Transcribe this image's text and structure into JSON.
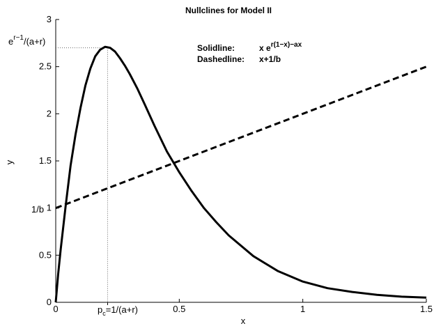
{
  "chart_data": {
    "type": "line",
    "title": "Nullclines for Model II",
    "xlabel": "x",
    "ylabel": "y",
    "xlim": [
      0,
      1.5
    ],
    "ylim": [
      0,
      3
    ],
    "x_ticks": [
      0,
      0.5,
      1,
      1.5
    ],
    "x_tick_labels": [
      "0",
      "0.5",
      "1",
      "1.5"
    ],
    "y_ticks": [
      0,
      0.5,
      1,
      1.5,
      2,
      2.5,
      3
    ],
    "y_tick_labels": [
      "0",
      "0.5",
      "1",
      "1.5",
      "2",
      "2.5",
      "3"
    ],
    "grid": false,
    "series": [
      {
        "style": "solid",
        "x": [
          0,
          0.01,
          0.02,
          0.04,
          0.06,
          0.08,
          0.1,
          0.12,
          0.14,
          0.16,
          0.18,
          0.2,
          0.22,
          0.24,
          0.26,
          0.28,
          0.3,
          0.33,
          0.36,
          0.4,
          0.45,
          0.5,
          0.55,
          0.6,
          0.65,
          0.7,
          0.8,
          0.9,
          1.0,
          1.1,
          1.2,
          1.3,
          1.4,
          1.5
        ],
        "y": [
          0,
          0.3,
          0.56,
          1.02,
          1.45,
          1.78,
          2.06,
          2.3,
          2.48,
          2.61,
          2.68,
          2.71,
          2.7,
          2.66,
          2.59,
          2.51,
          2.42,
          2.27,
          2.1,
          1.87,
          1.6,
          1.38,
          1.18,
          1.0,
          0.85,
          0.71,
          0.49,
          0.33,
          0.22,
          0.15,
          0.11,
          0.08,
          0.06,
          0.05
        ]
      },
      {
        "style": "dashed",
        "x": [
          0,
          1.5
        ],
        "y": [
          1.0,
          2.5
        ]
      }
    ],
    "annotations": {
      "peak_y_label": "e^{r-1}/(a+r)",
      "peak_y_main": "e",
      "peak_y_sup": "r−1",
      "peak_y_rest": "/(a+r)",
      "peak_y_value": 2.7,
      "pc_label": "p_c=1/(a+r)",
      "pc_main": "p",
      "pc_sub": "c",
      "pc_rest": "=1/(a+r)",
      "pc_value": 0.21,
      "intercept_label": "1/b",
      "intercept_value": 1.0
    },
    "legend": {
      "solid_name": "Solidline:",
      "solid_formula_main": "x e",
      "solid_formula_sup": "r(1−x)−ax",
      "dashed_name": "Dashedline:",
      "dashed_formula": "x+1/b"
    }
  }
}
